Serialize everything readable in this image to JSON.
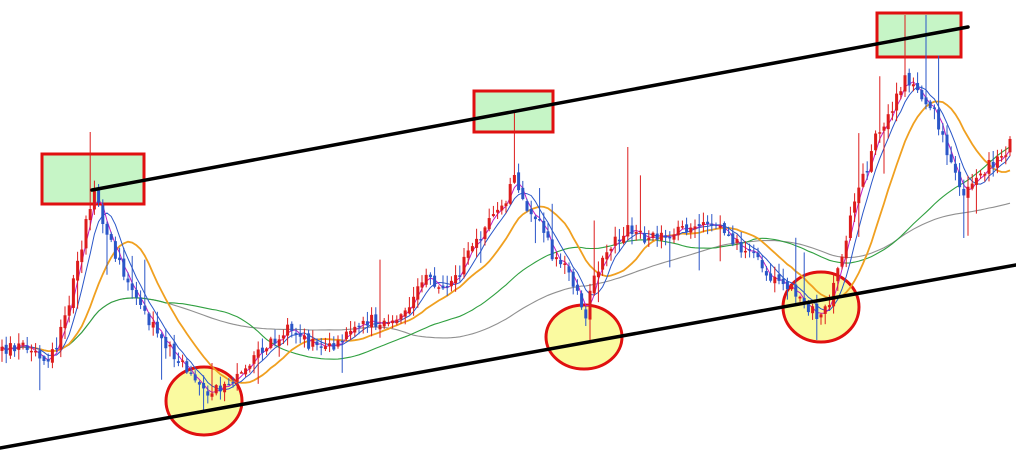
{
  "chart_data": {
    "type": "candlestick",
    "title": "",
    "xlabel": "",
    "ylabel": "",
    "grid": false,
    "ylim": [
      0,
      475
    ],
    "colors": {
      "up": "#dd1c1c",
      "down": "#2a56c8",
      "channel": "#000000",
      "box_fill": "#c6f5c6",
      "box_border": "#e01010",
      "ellipse_fill": "#fafaa0",
      "ellipse_border": "#e01010",
      "ma_short": "#c020c0",
      "ma_mid": "#2a56c8",
      "ma_orange": "#f0a020",
      "ma_green": "#30a040",
      "ma_gray": "#909090"
    },
    "series": [
      {
        "name": "",
        "kind": "moving_average_short",
        "color_key": "ma_short"
      },
      {
        "name": "",
        "kind": "moving_average_mid",
        "color_key": "ma_mid"
      },
      {
        "name": "",
        "kind": "moving_average_orange",
        "color_key": "ma_orange"
      },
      {
        "name": "",
        "kind": "moving_average_green",
        "color_key": "ma_green"
      },
      {
        "name": "",
        "kind": "moving_average_gray",
        "color_key": "ma_gray"
      }
    ],
    "channel_lines": [
      {
        "kind": "resistance",
        "from": [
          92,
          190
        ],
        "to": [
          968,
          27
        ]
      },
      {
        "kind": "support",
        "from": [
          0,
          448
        ],
        "to": [
          1016,
          265
        ]
      }
    ],
    "resistance_touches": [
      {
        "x0": 42,
        "x1": 144,
        "y_top": 154,
        "y_bottom": 204
      },
      {
        "x0": 474,
        "x1": 553,
        "y_top": 91,
        "y_bottom": 132
      },
      {
        "x0": 877,
        "x1": 961,
        "y_top": 13,
        "y_bottom": 57
      }
    ],
    "support_touches": [
      {
        "cx": 204,
        "cy": 401,
        "rx": 38,
        "ry": 34
      },
      {
        "cx": 584,
        "cy": 337,
        "rx": 38,
        "ry": 32
      },
      {
        "cx": 821,
        "cy": 307,
        "rx": 38,
        "ry": 35
      }
    ],
    "price_path": [
      [
        0,
        350
      ],
      [
        20,
        345
      ],
      [
        40,
        360
      ],
      [
        55,
        355
      ],
      [
        70,
        300
      ],
      [
        85,
        230
      ],
      [
        95,
        190
      ],
      [
        105,
        230
      ],
      [
        115,
        255
      ],
      [
        130,
        290
      ],
      [
        150,
        320
      ],
      [
        170,
        350
      ],
      [
        190,
        370
      ],
      [
        205,
        395
      ],
      [
        220,
        385
      ],
      [
        240,
        370
      ],
      [
        255,
        360
      ],
      [
        270,
        340
      ],
      [
        290,
        330
      ],
      [
        310,
        345
      ],
      [
        330,
        350
      ],
      [
        350,
        330
      ],
      [
        370,
        320
      ],
      [
        390,
        325
      ],
      [
        410,
        300
      ],
      [
        425,
        270
      ],
      [
        440,
        290
      ],
      [
        455,
        280
      ],
      [
        470,
        250
      ],
      [
        490,
        220
      ],
      [
        505,
        200
      ],
      [
        515,
        180
      ],
      [
        525,
        205
      ],
      [
        540,
        225
      ],
      [
        555,
        260
      ],
      [
        570,
        275
      ],
      [
        585,
        320
      ],
      [
        595,
        275
      ],
      [
        610,
        250
      ],
      [
        625,
        230
      ],
      [
        640,
        235
      ],
      [
        660,
        240
      ],
      [
        680,
        225
      ],
      [
        700,
        228
      ],
      [
        720,
        232
      ],
      [
        740,
        245
      ],
      [
        760,
        265
      ],
      [
        780,
        285
      ],
      [
        800,
        295
      ],
      [
        815,
        315
      ],
      [
        830,
        300
      ],
      [
        845,
        240
      ],
      [
        860,
        190
      ],
      [
        875,
        140
      ],
      [
        895,
        100
      ],
      [
        905,
        80
      ],
      [
        920,
        90
      ],
      [
        935,
        110
      ],
      [
        945,
        150
      ],
      [
        955,
        170
      ],
      [
        965,
        195
      ],
      [
        980,
        175
      ],
      [
        995,
        160
      ],
      [
        1016,
        140
      ]
    ]
  }
}
